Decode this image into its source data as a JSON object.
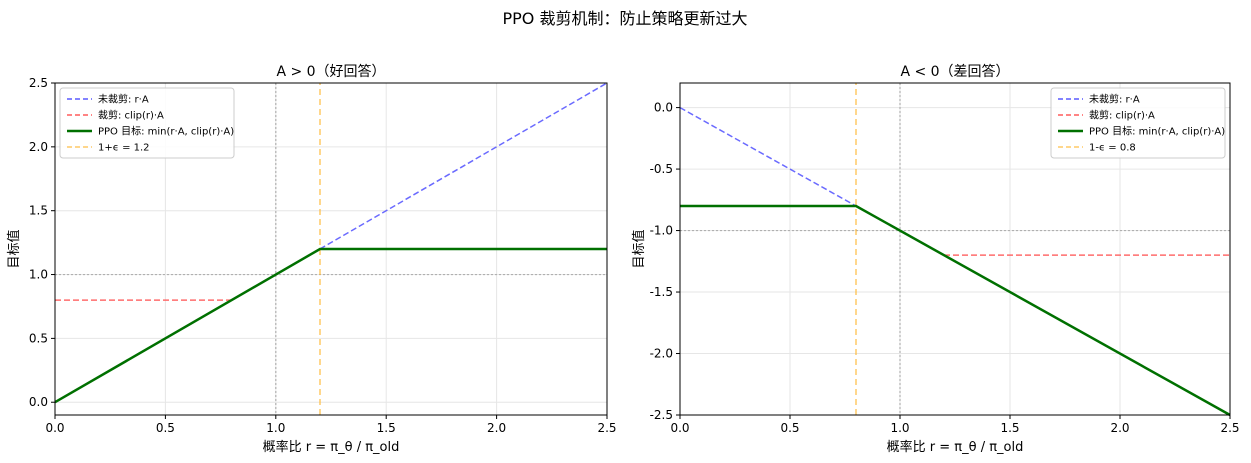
{
  "suptitle": "PPO 裁剪机制：防止策略更新过大",
  "colors": {
    "unclipped": "#5a5aff",
    "clipped": "#ff5c5c",
    "objective": "#007000",
    "epsilon": "#ffb833",
    "reference": "#b0b0b0",
    "grid": "#e6e6e6"
  },
  "chart_data": [
    {
      "type": "line",
      "title": "A > 0（好回答）",
      "xlabel": "概率比 r = π_θ / π_old",
      "ylabel": "目标值",
      "xlim": [
        0,
        2.5
      ],
      "ylim": [
        -0.1,
        2.5
      ],
      "xticks": [
        0,
        0.5,
        1,
        1.5,
        2,
        2.5
      ],
      "xtick_labels": [
        "0.0",
        "0.5",
        "1.0",
        "1.5",
        "2.0",
        "2.5"
      ],
      "yticks": [
        0,
        0.5,
        1,
        1.5,
        2,
        2.5
      ],
      "ytick_labels": [
        "0.0",
        "0.5",
        "1.0",
        "1.5",
        "2.0",
        "2.5"
      ],
      "grid": true,
      "legend_position": "top-left",
      "advantage": 1,
      "reference_lines": {
        "vertical": 1.0,
        "horizontal": 1.0
      },
      "epsilon_line": 1.2,
      "series": [
        {
          "name": "未裁剪: r·A",
          "style": "dashed",
          "color_key": "unclipped",
          "x": [
            0,
            2.5
          ],
          "y": [
            0,
            2.5
          ]
        },
        {
          "name": "裁剪: clip(r)·A",
          "style": "dashed",
          "color_key": "clipped",
          "x": [
            0,
            0.8
          ],
          "y": [
            0.8,
            0.8
          ]
        },
        {
          "name": "PPO 目标: min(r·A, clip(r)·A)",
          "style": "solid",
          "color_key": "objective",
          "x": [
            0,
            1.2,
            2.5
          ],
          "y": [
            0,
            1.2,
            1.2
          ]
        },
        {
          "name": "1+ϵ = 1.2",
          "style": "dashed",
          "color_key": "epsilon",
          "x": [
            1.2,
            1.2
          ],
          "y": [
            -0.1,
            2.5
          ]
        }
      ]
    },
    {
      "type": "line",
      "title": "A < 0（差回答）",
      "xlabel": "概率比 r = π_θ / π_old",
      "ylabel": "目标值",
      "xlim": [
        0,
        2.5
      ],
      "ylim": [
        -2.5,
        0.2
      ],
      "xticks": [
        0,
        0.5,
        1,
        1.5,
        2,
        2.5
      ],
      "xtick_labels": [
        "0.0",
        "0.5",
        "1.0",
        "1.5",
        "2.0",
        "2.5"
      ],
      "yticks": [
        0,
        -0.5,
        -1,
        -1.5,
        -2,
        -2.5
      ],
      "ytick_labels": [
        "0.0",
        "-0.5",
        "-1.0",
        "-1.5",
        "-2.0",
        "-2.5"
      ],
      "grid": true,
      "legend_position": "top-right",
      "advantage": -1,
      "reference_lines": {
        "vertical": 1.0,
        "horizontal": -1.0
      },
      "epsilon_line": 0.8,
      "series": [
        {
          "name": "未裁剪: r·A",
          "style": "dashed",
          "color_key": "unclipped",
          "x": [
            0,
            0.8
          ],
          "y": [
            0,
            -0.8
          ]
        },
        {
          "name": "裁剪: clip(r)·A",
          "style": "dashed",
          "color_key": "clipped",
          "x": [
            1.2,
            2.5
          ],
          "y": [
            -1.2,
            -1.2
          ]
        },
        {
          "name": "PPO 目标: min(r·A, clip(r)·A)",
          "style": "solid",
          "color_key": "objective",
          "x": [
            0,
            0.8,
            2.5
          ],
          "y": [
            -0.8,
            -0.8,
            -2.5
          ]
        },
        {
          "name": "1-ϵ = 0.8",
          "style": "dashed",
          "color_key": "epsilon",
          "x": [
            0.8,
            0.8
          ],
          "y": [
            -2.5,
            0.2
          ]
        }
      ]
    }
  ]
}
